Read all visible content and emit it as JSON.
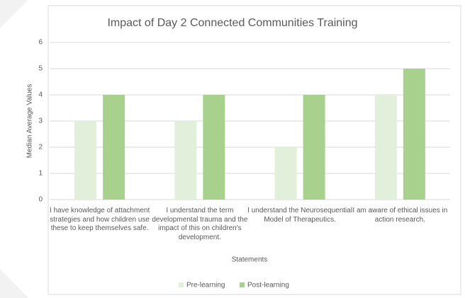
{
  "chart_data": {
    "type": "bar",
    "title": "Impact of Day 2 Connected Communities Training",
    "x_label": "Statements",
    "y_label": "Median Average Values",
    "categories": [
      "I have knowledge of attachment strategies and how children use these to keep themselves safe.",
      "I understand the term developmental trauma and the impact of this on children's development.",
      "I understand the Neurosequential Model of Therapeutics.",
      "I am aware of ethical issues in action research."
    ],
    "series": [
      {
        "name": "Pre-learning",
        "color": "#e2efda",
        "values": [
          3,
          3,
          2,
          4
        ]
      },
      {
        "name": "Post-learning",
        "color": "#a9d18e",
        "values": [
          4,
          4,
          4,
          5
        ]
      }
    ],
    "ylim": [
      0,
      6
    ],
    "yticks": [
      0,
      1,
      2,
      3,
      4,
      5,
      6
    ],
    "grid": true,
    "legend": "bottom"
  }
}
